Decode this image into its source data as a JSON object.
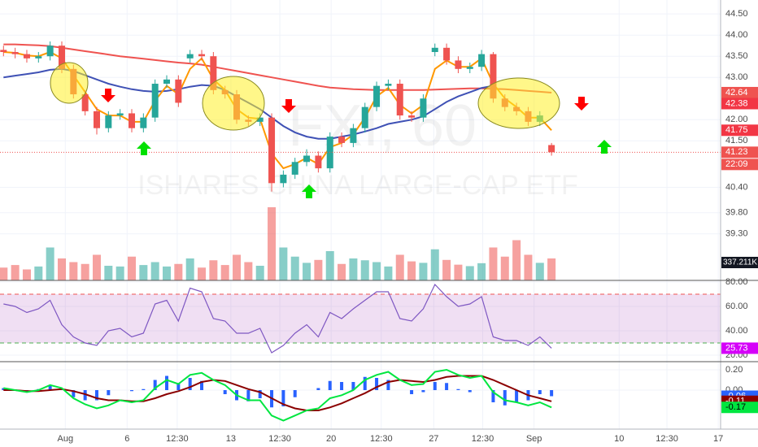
{
  "chart_data": [
    {
      "type": "candlestick",
      "title": "FXI, 60",
      "subtitle": "ISHARES CHINA LARGE-CAP ETF",
      "up_color": "#26a69a",
      "down_color": "#ef5350",
      "xlim": [
        -0.3,
        61.5
      ],
      "xticks": [
        {
          "value": 5.3,
          "label": "Aug"
        },
        {
          "value": 10.6,
          "label": "6"
        },
        {
          "value": 14.9,
          "label": "12:30"
        },
        {
          "value": 19.5,
          "label": "13"
        },
        {
          "value": 23.7,
          "label": "12:30"
        },
        {
          "value": 28.1,
          "label": "20"
        },
        {
          "value": 32.4,
          "label": "12:30"
        },
        {
          "value": 36.9,
          "label": "27"
        },
        {
          "value": 41.1,
          "label": "12:30"
        },
        {
          "value": 45.5,
          "label": "Sep"
        },
        {
          "value": 52.8,
          "label": "10"
        },
        {
          "value": 56.9,
          "label": "12:30"
        },
        {
          "value": 61.3,
          "label": "17"
        }
      ],
      "ylim": [
        38.2,
        44.83
      ],
      "yticks": [
        {
          "value": 44.5,
          "label": "44.50"
        },
        {
          "value": 44,
          "label": "44.00"
        },
        {
          "value": 43.5,
          "label": "43.50"
        },
        {
          "value": 43,
          "label": "43.00"
        },
        {
          "value": 42,
          "label": "42.00"
        },
        {
          "value": 41.5,
          "label": "41.50"
        },
        {
          "value": 40.4,
          "label": "40.40"
        },
        {
          "value": 39.8,
          "label": "39.80"
        },
        {
          "value": 39.3,
          "label": "39.30"
        }
      ],
      "open": [
        43.65,
        43.6,
        43.55,
        43.45,
        43.5,
        43.75,
        43.2,
        42.6,
        42.2,
        41.8,
        42.1,
        42.15,
        41.8,
        42.05,
        42.85,
        42.95,
        43.45,
        43.55,
        43.5,
        42.7,
        42.6,
        42.0,
        41.95,
        42.05,
        40.5,
        40.7,
        41.0,
        41.15,
        40.85,
        41.6,
        41.45,
        41.8,
        42.3,
        42.8,
        42.85,
        42.1,
        42.05,
        43.6,
        43.7,
        43.4,
        43.2,
        43.25,
        43.55,
        42.5,
        42.3,
        42.2,
        41.95,
        41.4
      ],
      "high": [
        43.75,
        43.7,
        43.65,
        43.6,
        43.85,
        43.85,
        43.3,
        42.7,
        42.3,
        42.2,
        42.25,
        42.25,
        42.15,
        42.95,
        43.05,
        43.05,
        43.65,
        43.65,
        43.6,
        42.8,
        42.7,
        42.1,
        42.15,
        42.15,
        40.8,
        41.1,
        41.3,
        41.25,
        41.7,
        41.7,
        41.9,
        42.4,
        42.9,
        42.95,
        42.95,
        42.2,
        42.6,
        43.8,
        43.8,
        43.5,
        43.35,
        43.65,
        43.6,
        42.6,
        42.4,
        42.3,
        42.2,
        41.45
      ],
      "low": [
        43.5,
        43.45,
        43.35,
        43.35,
        43.4,
        43.1,
        42.5,
        42.1,
        41.65,
        41.7,
        42.0,
        41.7,
        41.7,
        41.95,
        42.75,
        42.3,
        43.35,
        43.4,
        42.6,
        42.5,
        41.9,
        41.85,
        41.85,
        40.3,
        40.4,
        40.6,
        40.9,
        40.75,
        40.75,
        41.35,
        41.35,
        41.7,
        42.2,
        42.7,
        42.0,
        41.95,
        41.95,
        43.5,
        43.3,
        43.1,
        43.1,
        43.15,
        42.4,
        42.2,
        42.1,
        41.85,
        41.85,
        41.15
      ],
      "close": [
        43.6,
        43.55,
        43.45,
        43.5,
        43.75,
        43.2,
        42.6,
        42.2,
        41.8,
        42.1,
        42.15,
        41.8,
        42.05,
        42.85,
        42.95,
        42.4,
        43.55,
        43.5,
        42.7,
        42.6,
        42.0,
        41.95,
        42.05,
        40.5,
        40.7,
        41.0,
        41.15,
        40.85,
        41.6,
        41.45,
        41.8,
        42.3,
        42.8,
        42.85,
        42.1,
        42.05,
        42.5,
        43.7,
        43.4,
        43.2,
        43.25,
        43.55,
        42.5,
        42.3,
        42.2,
        41.95,
        42.1,
        41.23
      ],
      "volume": [
        350000,
        420000,
        300000,
        380000,
        900000,
        600000,
        500000,
        450000,
        700000,
        400000,
        380000,
        650000,
        420000,
        500000,
        380000,
        450000,
        600000,
        350000,
        550000,
        420000,
        700000,
        500000,
        400000,
        2000000,
        900000,
        650000,
        480000,
        560000,
        800000,
        450000,
        600000,
        550000,
        500000,
        380000,
        700000,
        520000,
        480000,
        850000,
        560000,
        430000,
        390000,
        470000,
        900000,
        650000,
        1100000,
        700000,
        480000,
        600000
      ],
      "volume_ma_label": "337.211K",
      "series": [
        {
          "color": "#ef5350",
          "values": [
            43.78,
            43.78,
            43.77,
            43.76,
            43.74,
            43.7,
            43.66,
            43.62,
            43.58,
            43.54,
            43.5,
            43.47,
            43.44,
            43.41,
            43.38,
            43.35,
            43.33,
            43.3,
            43.25,
            43.2,
            43.15,
            43.1,
            43.05,
            43.0,
            42.95,
            42.9,
            42.85,
            42.8,
            42.76,
            42.74,
            42.72,
            42.71,
            42.7,
            42.7,
            42.7,
            42.7,
            42.7,
            42.71,
            42.72,
            42.73,
            42.74,
            42.74,
            42.73,
            42.72,
            42.7,
            42.68,
            42.66,
            42.64
          ]
        },
        {
          "color": "#3f51b5",
          "values": [
            43.0,
            43.04,
            43.08,
            43.12,
            43.18,
            43.2,
            43.15,
            43.05,
            42.95,
            42.85,
            42.78,
            42.72,
            42.68,
            42.66,
            42.68,
            42.72,
            42.78,
            42.82,
            42.8,
            42.7,
            42.55,
            42.4,
            42.25,
            42.05,
            41.85,
            41.7,
            41.6,
            41.55,
            41.55,
            41.6,
            41.65,
            41.72,
            41.8,
            41.9,
            41.95,
            42.0,
            42.08,
            42.25,
            42.42,
            42.55,
            42.65,
            42.75,
            42.8,
            null,
            null,
            null,
            null,
            null
          ]
        },
        {
          "color": "#ff9800",
          "values": [
            43.6,
            43.58,
            43.52,
            43.5,
            43.6,
            43.45,
            43.05,
            42.65,
            42.25,
            42.1,
            42.1,
            41.95,
            41.95,
            42.45,
            42.8,
            42.6,
            43.2,
            43.45,
            42.95,
            42.7,
            42.25,
            42.05,
            42.02,
            41.2,
            40.85,
            40.95,
            41.1,
            40.95,
            41.35,
            41.45,
            41.65,
            42.05,
            42.55,
            42.75,
            42.35,
            42.15,
            42.35,
            43.2,
            43.4,
            43.25,
            43.25,
            43.45,
            42.85,
            42.5,
            42.3,
            42.05,
            42.05,
            41.75
          ]
        }
      ],
      "price_markers": [
        {
          "value": 42.64,
          "color": "#ef5350"
        },
        {
          "value": 42.38,
          "color": "#f23645"
        },
        {
          "value": 41.75,
          "color": "#f23645"
        },
        {
          "value": 41.23,
          "color": "#ef5350"
        }
      ],
      "countdown": "22:09"
    },
    {
      "type": "rsi",
      "ylim": [
        14.7,
        81.3
      ],
      "yticks": [
        {
          "value": 80,
          "label": "80.00"
        },
        {
          "value": 60,
          "label": "60.00"
        },
        {
          "value": 40,
          "label": "40.00"
        },
        {
          "value": 20,
          "label": "20.00"
        }
      ],
      "band": [
        30,
        70
      ],
      "color": "#7e57c2",
      "values": [
        62,
        60,
        55,
        58,
        65,
        45,
        35,
        30,
        28,
        40,
        42,
        35,
        38,
        62,
        65,
        48,
        75,
        72,
        50,
        48,
        38,
        38,
        42,
        22,
        28,
        38,
        45,
        35,
        55,
        50,
        58,
        65,
        72,
        72,
        50,
        48,
        58,
        78,
        68,
        60,
        62,
        68,
        35,
        32,
        32,
        28,
        35,
        25.73
      ]
    },
    {
      "type": "macd",
      "ylim": [
        -0.384,
        0.28
      ],
      "yticks": [
        {
          "value": 0.2,
          "label": "0.20"
        },
        {
          "value": 0,
          "label": "0.00"
        }
      ],
      "histogram": {
        "color": "#2962ff",
        "values": [
          0.02,
          0.0,
          -0.01,
          0.01,
          0.05,
          0.01,
          -0.07,
          -0.1,
          -0.1,
          -0.05,
          0.0,
          -0.01,
          0.01,
          0.1,
          0.14,
          0.07,
          0.12,
          0.09,
          0.0,
          -0.04,
          -0.1,
          -0.11,
          -0.08,
          -0.17,
          -0.16,
          -0.07,
          0.0,
          0.02,
          0.09,
          0.08,
          0.08,
          0.13,
          0.12,
          0.1,
          0.0,
          -0.04,
          -0.02,
          0.08,
          0.07,
          0.01,
          -0.02,
          0.0,
          -0.12,
          -0.15,
          -0.12,
          -0.1,
          -0.04,
          -0.06
        ]
      },
      "signal": {
        "color": "#8b0000",
        "values": [
          0.0,
          0.0,
          -0.01,
          -0.01,
          0.0,
          0.01,
          -0.01,
          -0.04,
          -0.08,
          -0.1,
          -0.1,
          -0.11,
          -0.11,
          -0.08,
          -0.04,
          -0.01,
          0.03,
          0.08,
          0.1,
          0.09,
          0.05,
          0.01,
          -0.02,
          -0.08,
          -0.14,
          -0.18,
          -0.2,
          -0.2,
          -0.17,
          -0.13,
          -0.08,
          -0.03,
          0.03,
          0.08,
          0.1,
          0.09,
          0.08,
          0.1,
          0.13,
          0.14,
          0.14,
          0.14,
          0.1,
          0.05,
          0.0,
          -0.05,
          -0.08,
          -0.11
        ]
      },
      "macd": {
        "color": "#00e640",
        "values": [
          0.02,
          0.0,
          -0.02,
          0.0,
          0.05,
          0.02,
          -0.08,
          -0.14,
          -0.18,
          -0.15,
          -0.1,
          -0.12,
          -0.1,
          0.02,
          0.1,
          0.06,
          0.15,
          0.17,
          0.1,
          0.05,
          -0.05,
          -0.1,
          -0.1,
          -0.25,
          -0.3,
          -0.25,
          -0.2,
          -0.18,
          -0.08,
          -0.05,
          0.0,
          0.1,
          0.15,
          0.18,
          0.1,
          0.05,
          0.06,
          0.18,
          0.2,
          0.15,
          0.12,
          0.14,
          -0.02,
          -0.1,
          -0.12,
          -0.15,
          -0.12,
          -0.17
        ]
      }
    }
  ]
}
